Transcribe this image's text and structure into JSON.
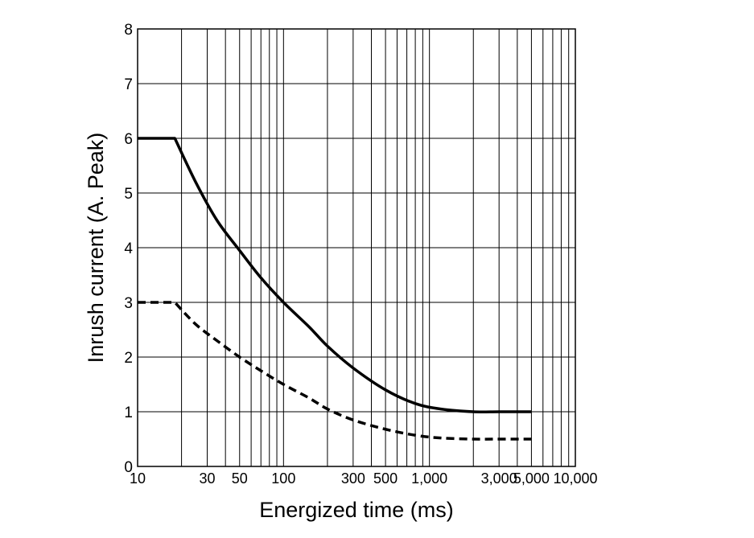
{
  "chart_data": {
    "type": "line",
    "title": "",
    "xlabel": "Energized time (ms)",
    "ylabel": "Inrush current (A. Peak)",
    "x_scale": "log",
    "xlim": [
      10,
      10000
    ],
    "ylim": [
      0,
      8
    ],
    "x_ticks": [
      10,
      30,
      50,
      100,
      300,
      500,
      1000,
      3000,
      5000,
      10000
    ],
    "x_tick_labels": [
      "10",
      "30",
      "50",
      "100",
      "300",
      "500",
      "1,000",
      "3,000",
      "5,000",
      "10,000"
    ],
    "y_ticks": [
      0,
      1,
      2,
      3,
      4,
      5,
      6,
      7,
      8
    ],
    "y_tick_labels": [
      "0",
      "1",
      "2",
      "3",
      "4",
      "5",
      "6",
      "7",
      "8"
    ],
    "grid": true,
    "series": [
      {
        "style": "solid",
        "color": "#000000",
        "x": [
          10,
          18,
          25,
          35,
          50,
          70,
          100,
          150,
          200,
          300,
          500,
          800,
          1200,
          2000,
          3000,
          5000
        ],
        "y": [
          6,
          6,
          5.2,
          4.5,
          3.95,
          3.45,
          3.0,
          2.55,
          2.2,
          1.8,
          1.4,
          1.15,
          1.05,
          1.0,
          1.0,
          1.0
        ]
      },
      {
        "style": "dashed",
        "color": "#000000",
        "x": [
          10,
          18,
          25,
          35,
          50,
          70,
          100,
          150,
          200,
          300,
          500,
          800,
          1200,
          2000,
          3000,
          5000
        ],
        "y": [
          3,
          3,
          2.6,
          2.3,
          2.0,
          1.75,
          1.5,
          1.25,
          1.05,
          0.85,
          0.68,
          0.57,
          0.52,
          0.5,
          0.5,
          0.5
        ]
      }
    ]
  }
}
